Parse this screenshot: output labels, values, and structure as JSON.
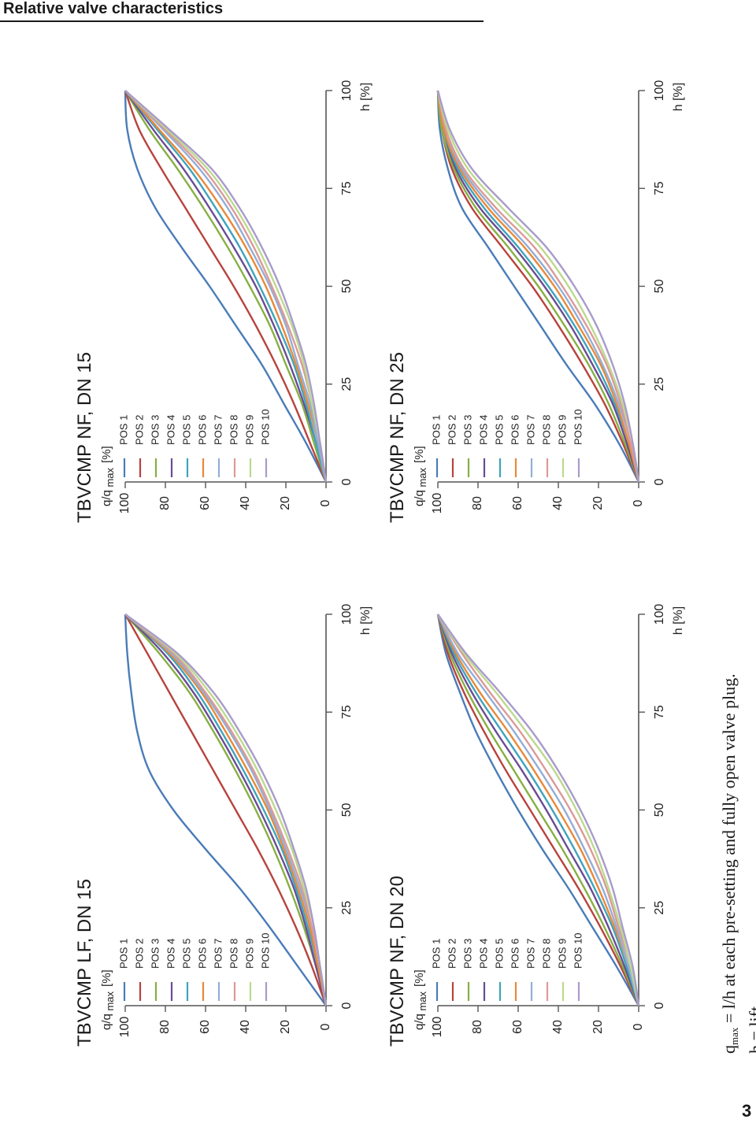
{
  "page": {
    "title": "Relative valve characteristics",
    "page_number": "3",
    "footnote": {
      "line1_var": "q",
      "line1_sub": "max",
      "line1_rest": " = l/h at each pre-setting and fully open valve plug.",
      "line2": "h = lift"
    }
  },
  "colors": {
    "POS 1": "#4a7cb8",
    "POS 2": "#b8433d",
    "POS 3": "#86b043",
    "POS 4": "#6a4c93",
    "POS 5": "#3fa4bc",
    "POS 6": "#e8893a",
    "POS 7": "#93aed6",
    "POS 8": "#db9a98",
    "POS 9": "#bcd98e",
    "POS 10": "#a99bcb"
  },
  "chart_data": [
    {
      "type": "line",
      "title": "TBVCMP LF, DN 15",
      "ylabel_main": "q/q",
      "ylabel_sub": "max",
      "ylabel_unit": "[%]",
      "xlabel": "h [%]",
      "xlim": [
        0,
        100
      ],
      "ylim": [
        0,
        100
      ],
      "xticks": [
        "0",
        "25",
        "50",
        "75",
        "100"
      ],
      "yticks": [
        "0",
        "20",
        "40",
        "60",
        "80",
        "100"
      ],
      "legend_position": "top-left",
      "x": [
        0,
        10,
        20,
        30,
        40,
        50,
        60,
        70,
        80,
        90,
        100
      ],
      "series": [
        {
          "name": "POS 1",
          "values": [
            0,
            14,
            28,
            43,
            60,
            76,
            88,
            94,
            97,
            99,
            100
          ]
        },
        {
          "name": "POS 2",
          "values": [
            0,
            7,
            15,
            24,
            34,
            45,
            56,
            67,
            78,
            89,
            100
          ]
        },
        {
          "name": "POS 3",
          "values": [
            0,
            5,
            11,
            18,
            26,
            35,
            45,
            56,
            68,
            83,
            100
          ]
        },
        {
          "name": "POS 4",
          "values": [
            0,
            5,
            10,
            16,
            24,
            33,
            43,
            54,
            66,
            81,
            100
          ]
        },
        {
          "name": "POS 5",
          "values": [
            0,
            4,
            9,
            15,
            22,
            31,
            41,
            52,
            64,
            79,
            100
          ]
        },
        {
          "name": "POS 6",
          "values": [
            0,
            4,
            8,
            14,
            21,
            29,
            39,
            50,
            62,
            78,
            100
          ]
        },
        {
          "name": "POS 7",
          "values": [
            0,
            3,
            7,
            13,
            20,
            28,
            37,
            48,
            61,
            77,
            100
          ]
        },
        {
          "name": "POS 8",
          "values": [
            0,
            3,
            7,
            12,
            19,
            27,
            36,
            47,
            60,
            76,
            100
          ]
        },
        {
          "name": "POS 9",
          "values": [
            0,
            3,
            6,
            11,
            17,
            25,
            34,
            45,
            58,
            75,
            100
          ]
        },
        {
          "name": "POS 10",
          "values": [
            0,
            3,
            6,
            10,
            16,
            23,
            32,
            43,
            56,
            74,
            100
          ]
        }
      ]
    },
    {
      "type": "line",
      "title": "TBVCMP NF, DN 15",
      "ylabel_main": "q/q",
      "ylabel_sub": "max",
      "ylabel_unit": "[%]",
      "xlabel": "h [%]",
      "xlim": [
        0,
        100
      ],
      "ylim": [
        0,
        100
      ],
      "xticks": [
        "0",
        "25",
        "50",
        "75",
        "100"
      ],
      "yticks": [
        "0",
        "20",
        "40",
        "60",
        "80",
        "100"
      ],
      "legend_position": "top-left",
      "x": [
        0,
        10,
        20,
        30,
        40,
        50,
        60,
        70,
        80,
        90,
        100
      ],
      "series": [
        {
          "name": "POS 1",
          "values": [
            0,
            10,
            21,
            32,
            45,
            58,
            72,
            85,
            94,
            99,
            100
          ]
        },
        {
          "name": "POS 2",
          "values": [
            0,
            8,
            16,
            25,
            35,
            46,
            58,
            70,
            82,
            93,
            100
          ]
        },
        {
          "name": "POS 3",
          "values": [
            0,
            6,
            12,
            20,
            28,
            38,
            49,
            61,
            74,
            88,
            100
          ]
        },
        {
          "name": "POS 4",
          "values": [
            0,
            5,
            11,
            18,
            26,
            35,
            46,
            58,
            71,
            86,
            100
          ]
        },
        {
          "name": "POS 5",
          "values": [
            0,
            5,
            10,
            16,
            24,
            33,
            43,
            55,
            68,
            84,
            100
          ]
        },
        {
          "name": "POS 6",
          "values": [
            0,
            4,
            9,
            15,
            22,
            30,
            40,
            52,
            66,
            83,
            100
          ]
        },
        {
          "name": "POS 7",
          "values": [
            0,
            4,
            8,
            14,
            20,
            28,
            38,
            49,
            63,
            81,
            100
          ]
        },
        {
          "name": "POS 8",
          "values": [
            0,
            3,
            7,
            12,
            19,
            27,
            36,
            47,
            61,
            80,
            100
          ]
        },
        {
          "name": "POS 9",
          "values": [
            0,
            3,
            7,
            11,
            17,
            25,
            34,
            45,
            59,
            79,
            100
          ]
        },
        {
          "name": "POS 10",
          "values": [
            0,
            3,
            6,
            10,
            16,
            23,
            32,
            43,
            57,
            78,
            100
          ]
        }
      ]
    },
    {
      "type": "line",
      "title": "TBVCMP NF, DN 20",
      "ylabel_main": "q/q",
      "ylabel_sub": "max",
      "ylabel_unit": "[%]",
      "xlabel": "h [%]",
      "xlim": [
        0,
        100
      ],
      "ylim": [
        0,
        100
      ],
      "xticks": [
        "0",
        "25",
        "50",
        "75",
        "100"
      ],
      "yticks": [
        "0",
        "20",
        "40",
        "60",
        "80",
        "100"
      ],
      "legend_position": "top-left",
      "x": [
        0,
        10,
        20,
        30,
        40,
        50,
        60,
        70,
        80,
        90,
        100
      ],
      "series": [
        {
          "name": "POS 1",
          "values": [
            0,
            11,
            23,
            35,
            48,
            60,
            71,
            81,
            89,
            96,
            100
          ]
        },
        {
          "name": "POS 2",
          "values": [
            0,
            9,
            19,
            30,
            42,
            54,
            66,
            77,
            87,
            95,
            100
          ]
        },
        {
          "name": "POS 3",
          "values": [
            0,
            8,
            17,
            27,
            38,
            50,
            62,
            74,
            85,
            94,
            100
          ]
        },
        {
          "name": "POS 4",
          "values": [
            0,
            7,
            15,
            24,
            35,
            46,
            58,
            71,
            83,
            93,
            100
          ]
        },
        {
          "name": "POS 5",
          "values": [
            0,
            6,
            13,
            22,
            32,
            43,
            55,
            68,
            81,
            92,
            100
          ]
        },
        {
          "name": "POS 6",
          "values": [
            0,
            5,
            12,
            20,
            29,
            40,
            52,
            65,
            79,
            91,
            100
          ]
        },
        {
          "name": "POS 7",
          "values": [
            0,
            5,
            11,
            18,
            27,
            37,
            49,
            62,
            76,
            90,
            100
          ]
        },
        {
          "name": "POS 8",
          "values": [
            0,
            4,
            10,
            16,
            24,
            34,
            46,
            59,
            74,
            88,
            100
          ]
        },
        {
          "name": "POS 9",
          "values": [
            0,
            4,
            9,
            15,
            22,
            31,
            42,
            56,
            71,
            87,
            100
          ]
        },
        {
          "name": "POS 10",
          "values": [
            0,
            3,
            8,
            13,
            20,
            29,
            40,
            53,
            69,
            86,
            100
          ]
        }
      ]
    },
    {
      "type": "line",
      "title": "TBVCMP NF, DN 25",
      "ylabel_main": "q/q",
      "ylabel_sub": "max",
      "ylabel_unit": "[%]",
      "xlabel": "h [%]",
      "xlim": [
        0,
        100
      ],
      "ylim": [
        0,
        100
      ],
      "xticks": [
        "0",
        "25",
        "50",
        "75",
        "100"
      ],
      "yticks": [
        "0",
        "20",
        "40",
        "60",
        "80",
        "100"
      ],
      "legend_position": "top-left",
      "x": [
        0,
        10,
        20,
        30,
        40,
        50,
        60,
        70,
        80,
        90,
        100
      ],
      "series": [
        {
          "name": "POS 1",
          "values": [
            0,
            10,
            22,
            36,
            49,
            62,
            75,
            88,
            95,
            99,
            100
          ]
        },
        {
          "name": "POS 2",
          "values": [
            0,
            8,
            17,
            28,
            40,
            53,
            68,
            83,
            93,
            98,
            100
          ]
        },
        {
          "name": "POS 3",
          "values": [
            0,
            7,
            15,
            25,
            37,
            50,
            65,
            81,
            92,
            98,
            100
          ]
        },
        {
          "name": "POS 4",
          "values": [
            0,
            6,
            13,
            23,
            34,
            47,
            62,
            79,
            91,
            97,
            100
          ]
        },
        {
          "name": "POS 5",
          "values": [
            0,
            5,
            12,
            21,
            32,
            45,
            60,
            77,
            90,
            97,
            100
          ]
        },
        {
          "name": "POS 6",
          "values": [
            0,
            5,
            11,
            19,
            30,
            42,
            57,
            75,
            89,
            97,
            100
          ]
        },
        {
          "name": "POS 7",
          "values": [
            0,
            4,
            10,
            18,
            28,
            40,
            55,
            73,
            88,
            96,
            100
          ]
        },
        {
          "name": "POS 8",
          "values": [
            0,
            4,
            9,
            16,
            26,
            38,
            52,
            71,
            87,
            96,
            100
          ]
        },
        {
          "name": "POS 9",
          "values": [
            0,
            3,
            8,
            15,
            24,
            35,
            49,
            68,
            85,
            95,
            100
          ]
        },
        {
          "name": "POS 10",
          "values": [
            0,
            3,
            7,
            13,
            21,
            32,
            46,
            65,
            83,
            94,
            100
          ]
        }
      ]
    }
  ]
}
